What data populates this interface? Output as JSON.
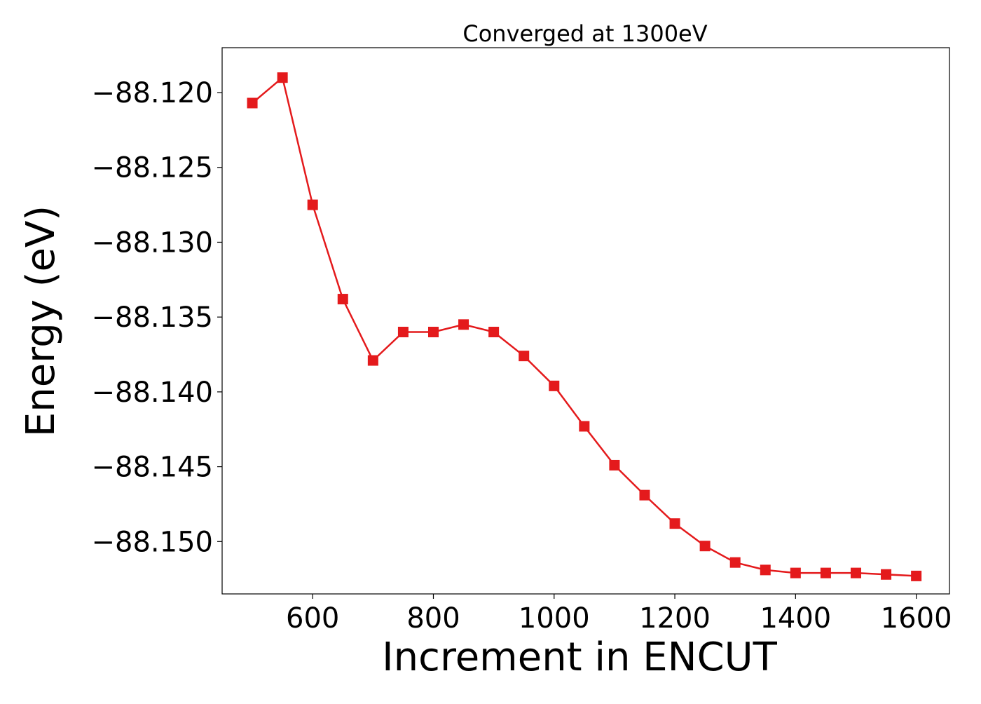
{
  "chart_data": {
    "type": "line",
    "title": "Converged at 1300eV",
    "xlabel": "Increment in ENCUT",
    "ylabel": "Energy (eV)",
    "xlim": [
      450,
      1655
    ],
    "ylim": [
      -88.1535,
      -88.117
    ],
    "xticks": [
      600,
      800,
      1000,
      1200,
      1400,
      1600
    ],
    "xtick_labels": [
      "600",
      "800",
      "1000",
      "1200",
      "1400",
      "1600"
    ],
    "yticks": [
      -88.12,
      -88.125,
      -88.13,
      -88.135,
      -88.14,
      -88.145,
      -88.15
    ],
    "ytick_labels": [
      "−88.120",
      "−88.125",
      "−88.130",
      "−88.135",
      "−88.140",
      "−88.145",
      "−88.150"
    ],
    "grid": false,
    "series": [
      {
        "color": "#e41a1c",
        "marker": "square",
        "x": [
          500,
          550,
          600,
          650,
          700,
          750,
          800,
          850,
          900,
          950,
          1000,
          1050,
          1100,
          1150,
          1200,
          1250,
          1300,
          1350,
          1400,
          1450,
          1500,
          1550,
          1600
        ],
        "y": [
          -88.1207,
          -88.119,
          -88.1275,
          -88.1338,
          -88.1379,
          -88.136,
          -88.136,
          -88.1355,
          -88.136,
          -88.1376,
          -88.1396,
          -88.1423,
          -88.1449,
          -88.1469,
          -88.1488,
          -88.1503,
          -88.1514,
          -88.1519,
          -88.1521,
          -88.1521,
          -88.1521,
          -88.1522,
          -88.1523
        ]
      }
    ]
  }
}
